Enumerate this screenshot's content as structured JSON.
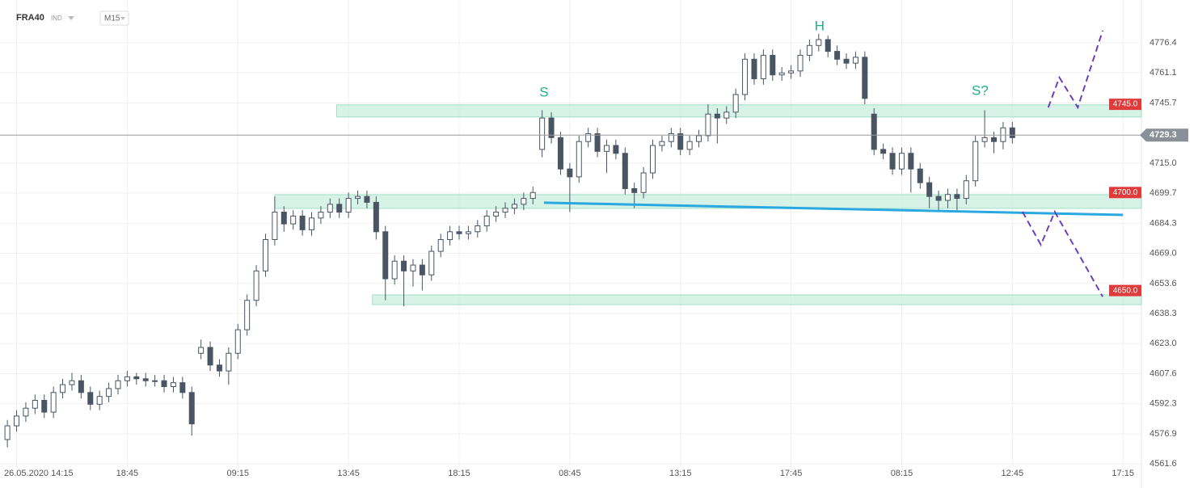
{
  "chart_data": {
    "type": "candlestick",
    "symbol": "FRA40",
    "symbol_type": "IND",
    "interval": "M15",
    "xlim": [
      -0.8,
      123
    ],
    "ylim": [
      4560,
      4798.2
    ],
    "xticks": [
      {
        "value": 1,
        "label": "26.05.2020 14:15"
      },
      {
        "value": 13,
        "label": "18:45"
      },
      {
        "value": 25,
        "label": "09:15"
      },
      {
        "value": 37,
        "label": "13:45"
      },
      {
        "value": 49,
        "label": "18:15"
      },
      {
        "value": 61,
        "label": "08:45"
      },
      {
        "value": 73,
        "label": "13:15"
      },
      {
        "value": 85,
        "label": "17:45"
      },
      {
        "value": 97,
        "label": "08:15"
      },
      {
        "value": 109,
        "label": "12:45"
      },
      {
        "value": 121,
        "label": "17:15"
      }
    ],
    "yticks": [
      4561.6,
      4576.9,
      4592.3,
      4607.6,
      {
        "value": 4623,
        "label": "4623.0"
      },
      4638.3,
      4653.6,
      {
        "value": 4669,
        "label": "4669.0"
      },
      4684.3,
      4699.7,
      {
        "value": 4715,
        "label": "4715.0"
      },
      4745.7,
      4761.1,
      4776.4
    ],
    "grid": true,
    "up_color": "#ffffff",
    "down_color": "#4a5563",
    "open": [
      4574,
      4581,
      4586,
      4590,
      4594,
      4588,
      4598,
      4602,
      4604,
      4598,
      4592,
      4596,
      4600,
      4604,
      4606,
      4605,
      4604,
      4604,
      4601,
      4603,
      4598,
      4618,
      4621,
      4612,
      4609,
      4618,
      4630,
      4645,
      4660,
      4676,
      4690,
      4684,
      4688,
      4681,
      4687,
      4690,
      4694,
      4690,
      4697,
      4698,
      4695,
      4680,
      4656,
      4665,
      4660,
      4663,
      4658,
      4670,
      4676,
      4680,
      4679,
      4680,
      4683,
      4688,
      4690,
      4692,
      4694,
      4697,
      4722,
      4738,
      4728,
      4712,
      4708,
      4726,
      4730,
      4721,
      4724,
      4720,
      4702,
      4700,
      4710,
      4724,
      4726,
      4730,
      4722,
      4726,
      4729,
      4740,
      4738,
      4741,
      4750,
      4768,
      4758,
      4770,
      4760,
      4761,
      4762,
      4770,
      4775,
      4778,
      4772,
      4768,
      4766,
      4769,
      4740,
      4722,
      4720,
      4712,
      4720,
      4712,
      4705,
      4698,
      4696,
      4699,
      4697,
      4706,
      4726,
      4728,
      4726,
      4733
    ],
    "high": [
      4584,
      4589,
      4593,
      4597,
      4597,
      4601,
      4605,
      4608,
      4607,
      4601,
      4599,
      4603,
      4607,
      4609,
      4608,
      4608,
      4607,
      4607,
      4606,
      4606,
      4601,
      4625,
      4624,
      4615,
      4621,
      4633,
      4648,
      4663,
      4679,
      4698,
      4693,
      4691,
      4691,
      4690,
      4693,
      4697,
      4697,
      4700,
      4701,
      4701,
      4698,
      4683,
      4668,
      4668,
      4666,
      4666,
      4673,
      4679,
      4683,
      4683,
      4683,
      4686,
      4691,
      4693,
      4695,
      4697,
      4700,
      4703,
      4742,
      4741,
      4731,
      4715,
      4729,
      4733,
      4733,
      4727,
      4727,
      4723,
      4705,
      4713,
      4727,
      4729,
      4733,
      4733,
      4729,
      4732,
      4745,
      4743,
      4744,
      4753,
      4771,
      4771,
      4773,
      4773,
      4764,
      4765,
      4773,
      4778,
      4781,
      4780,
      4775,
      4771,
      4772,
      4772,
      4743,
      4725,
      4723,
      4723,
      4723,
      4715,
      4708,
      4701,
      4702,
      4702,
      4709,
      4729,
      4742,
      4731,
      4736,
      4736
    ],
    "low": [
      4570,
      4578,
      4583,
      4587,
      4585,
      4585,
      4595,
      4599,
      4595,
      4589,
      4589,
      4593,
      4597,
      4601,
      4602,
      4601,
      4601,
      4598,
      4598,
      4595,
      4576,
      4615,
      4609,
      4606,
      4602,
      4615,
      4627,
      4642,
      4657,
      4673,
      4680,
      4681,
      4678,
      4678,
      4684,
      4687,
      4687,
      4687,
      4694,
      4692,
      4676,
      4645,
      4653,
      4642,
      4652,
      4650,
      4655,
      4667,
      4673,
      4676,
      4676,
      4677,
      4680,
      4685,
      4687,
      4689,
      4691,
      4694,
      4718,
      4725,
      4709,
      4690,
      4705,
      4723,
      4718,
      4710,
      4717,
      4699,
      4692,
      4697,
      4707,
      4721,
      4723,
      4719,
      4719,
      4723,
      4726,
      4725,
      4735,
      4738,
      4747,
      4755,
      4755,
      4757,
      4757,
      4758,
      4759,
      4767,
      4772,
      4769,
      4765,
      4763,
      4763,
      4745,
      4719,
      4717,
      4709,
      4709,
      4700,
      4702,
      4692,
      4690,
      4692,
      4690,
      4694,
      4703,
      4723,
      4720,
      4722,
      4725
    ],
    "close": [
      4581,
      4586,
      4590,
      4594,
      4588,
      4598,
      4602,
      4604,
      4598,
      4592,
      4596,
      4600,
      4604,
      4606,
      4605,
      4604,
      4604,
      4601,
      4603,
      4598,
      4582,
      4621,
      4612,
      4609,
      4618,
      4630,
      4645,
      4660,
      4676,
      4690,
      4684,
      4688,
      4681,
      4687,
      4690,
      4694,
      4690,
      4697,
      4698,
      4695,
      4680,
      4656,
      4665,
      4660,
      4663,
      4658,
      4670,
      4676,
      4680,
      4679,
      4680,
      4683,
      4688,
      4690,
      4692,
      4694,
      4697,
      4700,
      4738,
      4728,
      4712,
      4708,
      4726,
      4730,
      4721,
      4724,
      4720,
      4702,
      4700,
      4710,
      4724,
      4726,
      4730,
      4722,
      4726,
      4729,
      4740,
      4738,
      4741,
      4750,
      4768,
      4758,
      4770,
      4760,
      4761,
      4762,
      4770,
      4775,
      4778,
      4772,
      4768,
      4766,
      4769,
      4748,
      4722,
      4720,
      4712,
      4720,
      4712,
      4705,
      4698,
      4696,
      4699,
      4697,
      4706,
      4726,
      4728,
      4726,
      4733,
      4728
    ],
    "current_price": 4729.3,
    "zones": [
      {
        "level": {
          "value": 4745,
          "label": "4745.0"
        },
        "range": [
          4738.5,
          4744.7
        ],
        "x_start": 35.7
      },
      {
        "level": {
          "value": 4700,
          "label": "4700.0"
        },
        "range": [
          4691.9,
          4698.9
        ],
        "x_start": 29
      },
      {
        "level": {
          "value": 4650,
          "label": "4650.0"
        },
        "range": [
          4642.8,
          4647.8
        ],
        "x_start": 39.6
      }
    ],
    "zone_color": "#c9efe0",
    "tag_color": "#e03a3a",
    "neckline": {
      "x": [
        58.2,
        121
      ],
      "y": [
        4694.8,
        4688.6
      ],
      "color": "#2aa8e0"
    },
    "projections": [
      {
        "x": [
          112.9,
          114.1,
          116.1,
          118.8
        ],
        "y": [
          4743.4,
          4758.7,
          4743.4,
          4782.6
        ]
      },
      {
        "x": [
          110.1,
          112.1,
          113.6,
          118.8
        ],
        "y": [
          4690.2,
          4673.3,
          4690.2,
          4646.9
        ]
      }
    ],
    "projection_color": "#6a40b8",
    "annotations": [
      {
        "text": "S",
        "x": 58.2,
        "y": 4750.8
      },
      {
        "text": "H",
        "x": 88.1,
        "y": 4784.6
      },
      {
        "text": "S?",
        "x": 105.5,
        "y": 4751.7
      }
    ],
    "annotation_color": "#1fae8a"
  }
}
